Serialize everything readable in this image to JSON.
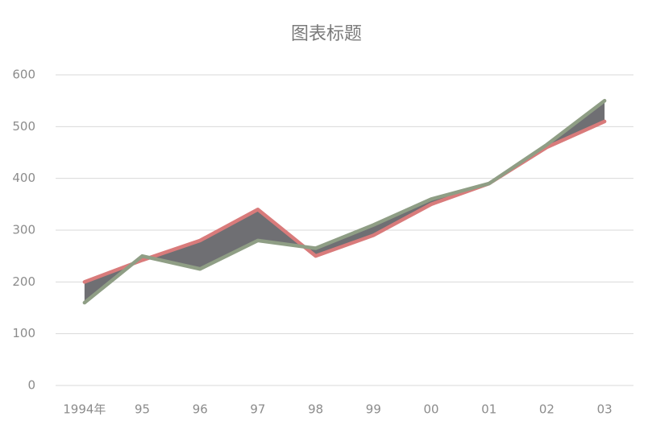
{
  "chart_data": {
    "type": "line",
    "title": "图表标题",
    "categories": [
      "1994年",
      "95",
      "96",
      "97",
      "98",
      "99",
      "00",
      "01",
      "02",
      "03"
    ],
    "series": [
      {
        "color": "#d97b7b",
        "values": [
          200,
          242,
          280,
          340,
          250,
          290,
          350,
          390,
          460,
          510
        ]
      },
      {
        "color": "#8f9e85",
        "values": [
          160,
          250,
          225,
          280,
          265,
          310,
          360,
          390,
          465,
          550
        ]
      }
    ],
    "fill_between_color": "#6f6f73",
    "ylim": [
      0,
      600
    ],
    "yticks": [
      0,
      100,
      200,
      300,
      400,
      500,
      600
    ],
    "grid": true
  }
}
